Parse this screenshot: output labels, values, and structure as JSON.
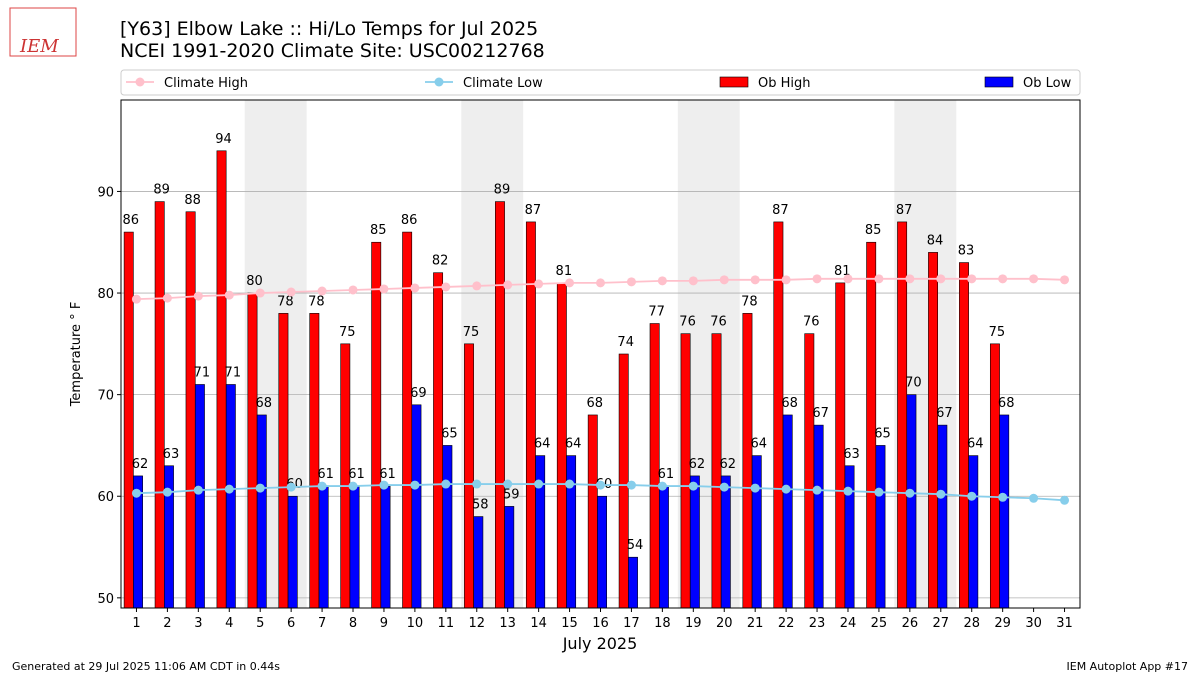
{
  "chart_data": {
    "type": "bar",
    "logo": "IEM",
    "title": "[Y63] Elbow Lake :: Hi/Lo Temps for Jul 2025",
    "subtitle": "NCEI 1991-2020 Climate Site: USC00212768",
    "ylabel": "Temperature ° F",
    "xlabel": "July 2025",
    "footer_left": "Generated at 29 Jul 2025 11:06 AM CDT in 0.44s",
    "footer_right": "IEM Autoplot App #17",
    "x": [
      1,
      2,
      3,
      4,
      5,
      6,
      7,
      8,
      9,
      10,
      11,
      12,
      13,
      14,
      15,
      16,
      17,
      18,
      19,
      20,
      21,
      22,
      23,
      24,
      25,
      26,
      27,
      28,
      29,
      30,
      31
    ],
    "xlim": [
      0.5,
      31.5
    ],
    "ylim": [
      49,
      99
    ],
    "yticks": [
      50,
      60,
      70,
      80,
      90
    ],
    "grid": true,
    "shaded_ranges": [
      [
        4.5,
        6.5
      ],
      [
        11.5,
        13.5
      ],
      [
        18.5,
        20.5
      ],
      [
        25.5,
        27.5
      ]
    ],
    "shade_color": "#eeeeee",
    "series": [
      {
        "name": "Climate High",
        "kind": "line",
        "color": "#ffc0cb",
        "values": [
          79.4,
          79.5,
          79.7,
          79.8,
          80.0,
          80.1,
          80.2,
          80.3,
          80.4,
          80.5,
          80.6,
          80.7,
          80.8,
          80.9,
          81.0,
          81.0,
          81.1,
          81.2,
          81.2,
          81.3,
          81.3,
          81.3,
          81.4,
          81.4,
          81.4,
          81.4,
          81.4,
          81.4,
          81.4,
          81.4,
          81.3
        ]
      },
      {
        "name": "Climate Low",
        "kind": "line",
        "color": "#87ceeb",
        "values": [
          60.3,
          60.4,
          60.6,
          60.7,
          60.8,
          60.9,
          61.0,
          61.0,
          61.1,
          61.1,
          61.2,
          61.2,
          61.2,
          61.2,
          61.2,
          61.1,
          61.1,
          61.0,
          61.0,
          60.9,
          60.8,
          60.7,
          60.6,
          60.5,
          60.4,
          60.3,
          60.2,
          60.0,
          59.9,
          59.8,
          59.6
        ]
      },
      {
        "name": "Ob High",
        "kind": "bar",
        "offset": [
          -0.4,
          -0.1
        ],
        "color": "#ff0000",
        "values": [
          86,
          89,
          88,
          94,
          80,
          78,
          78,
          75,
          85,
          86,
          82,
          75,
          89,
          87,
          81,
          68,
          74,
          77,
          76,
          76,
          78,
          87,
          76,
          81,
          85,
          87,
          84,
          83,
          75,
          null,
          null
        ]
      },
      {
        "name": "Ob Low",
        "kind": "bar",
        "offset": [
          -0.1,
          0.2
        ],
        "color": "#0000ff",
        "values": [
          62,
          63,
          71,
          71,
          68,
          60,
          61,
          61,
          61,
          69,
          65,
          58,
          59,
          64,
          64,
          60,
          54,
          61,
          62,
          62,
          64,
          68,
          67,
          63,
          65,
          70,
          67,
          64,
          68,
          null,
          null
        ]
      }
    ]
  }
}
